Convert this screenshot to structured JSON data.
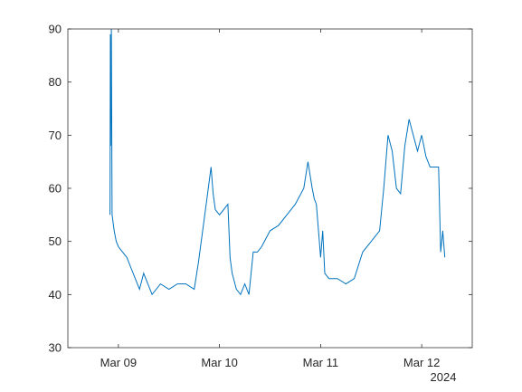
{
  "chart_data": {
    "type": "line",
    "title": "",
    "xlabel": "",
    "ylabel": "",
    "x_tick_labels": [
      "Mar 09",
      "Mar 10",
      "Mar 11",
      "Mar 12"
    ],
    "x_secondary_label": "2024",
    "y_tick_labels": [
      "30",
      "40",
      "50",
      "60",
      "70",
      "80",
      "90"
    ],
    "ylim": [
      30,
      90
    ],
    "xlim": [
      "2024-03-08 12:00",
      "2024-03-12 12:00"
    ],
    "grid": false,
    "legend": "none",
    "series": [
      {
        "color": "#0072bd",
        "x": [
          "2024-03-08 22:00",
          "2024-03-08 22:05",
          "2024-03-08 22:10",
          "2024-03-08 22:20",
          "2024-03-08 22:30",
          "2024-03-08 23:00",
          "2024-03-08 23:30",
          "2024-03-09 00:00",
          "2024-03-09 01:00",
          "2024-03-09 02:00",
          "2024-03-09 03:00",
          "2024-03-09 04:00",
          "2024-03-09 05:00",
          "2024-03-09 06:00",
          "2024-03-09 08:00",
          "2024-03-09 10:00",
          "2024-03-09 12:00",
          "2024-03-09 14:00",
          "2024-03-09 16:00",
          "2024-03-09 18:00",
          "2024-03-09 19:00",
          "2024-03-09 20:00",
          "2024-03-09 21:00",
          "2024-03-09 22:00",
          "2024-03-09 22:30",
          "2024-03-09 23:00",
          "2024-03-10 00:00",
          "2024-03-10 01:00",
          "2024-03-10 02:00",
          "2024-03-10 02:30",
          "2024-03-10 03:00",
          "2024-03-10 04:00",
          "2024-03-10 05:00",
          "2024-03-10 06:00",
          "2024-03-10 07:00",
          "2024-03-10 08:00",
          "2024-03-10 09:00",
          "2024-03-10 10:00",
          "2024-03-10 12:00",
          "2024-03-10 14:00",
          "2024-03-10 16:00",
          "2024-03-10 18:00",
          "2024-03-10 20:00",
          "2024-03-10 21:00",
          "2024-03-10 22:00",
          "2024-03-10 22:30",
          "2024-03-10 23:00",
          "2024-03-11 00:00",
          "2024-03-11 00:30",
          "2024-03-11 01:00",
          "2024-03-11 02:00",
          "2024-03-11 04:00",
          "2024-03-11 06:00",
          "2024-03-11 08:00",
          "2024-03-11 10:00",
          "2024-03-11 12:00",
          "2024-03-11 14:00",
          "2024-03-11 15:00",
          "2024-03-11 16:00",
          "2024-03-11 17:00",
          "2024-03-11 18:00",
          "2024-03-11 19:00",
          "2024-03-11 20:00",
          "2024-03-11 21:00",
          "2024-03-11 22:00",
          "2024-03-11 23:00",
          "2024-03-12 00:00",
          "2024-03-12 01:00",
          "2024-03-12 02:00",
          "2024-03-12 03:00",
          "2024-03-12 03:30",
          "2024-03-12 04:00",
          "2024-03-12 04:30",
          "2024-03-12 05:00",
          "2024-03-12 05:30"
        ],
        "y": [
          55,
          89,
          68,
          90,
          55,
          52,
          50,
          49,
          48,
          47,
          45,
          43,
          41,
          44,
          40,
          42,
          41,
          42,
          42,
          41,
          46,
          52,
          58,
          64,
          59,
          56,
          55,
          56,
          57,
          47,
          44,
          41,
          40,
          42,
          40,
          48,
          48,
          49,
          52,
          53,
          55,
          57,
          60,
          65,
          60,
          58,
          57,
          47,
          52,
          44,
          43,
          43,
          42,
          43,
          48,
          50,
          52,
          60,
          70,
          67,
          60,
          59,
          68,
          73,
          70,
          67,
          70,
          66,
          64,
          64,
          64,
          64,
          48,
          52,
          47
        ]
      }
    ]
  }
}
